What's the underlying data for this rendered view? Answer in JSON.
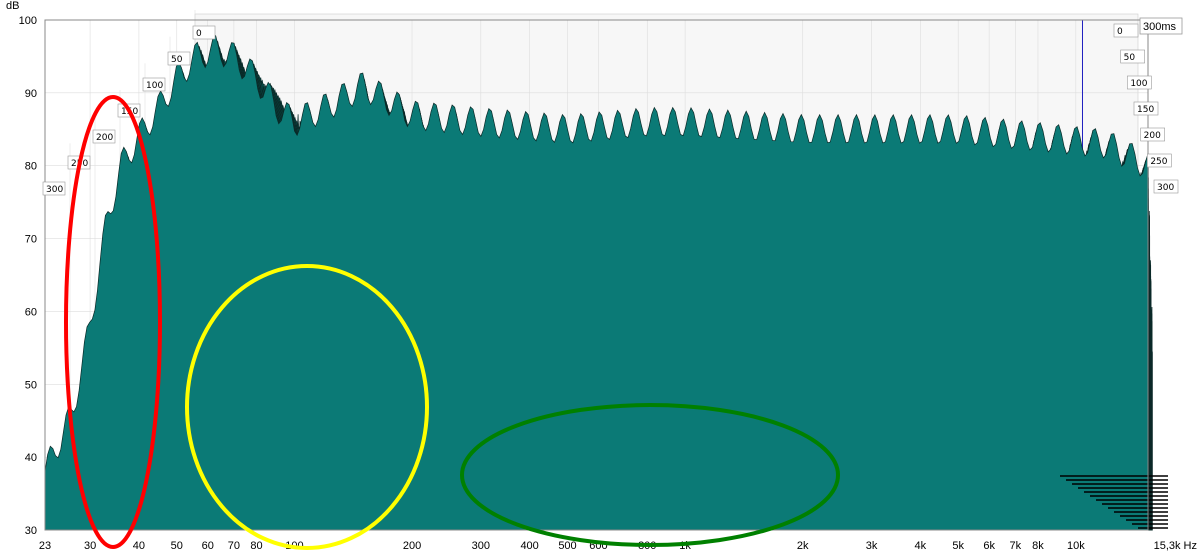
{
  "chart_data": {
    "type": "area",
    "subtype": "cumulative-spectral-decay-waterfall",
    "ylabel": "dB",
    "xunit": "Hz",
    "x_scale": "log",
    "xlim": [
      23,
      15300
    ],
    "ylim": [
      30,
      100
    ],
    "y_ticks": [
      30,
      40,
      50,
      60,
      70,
      80,
      90,
      100
    ],
    "x_ticks": [
      {
        "value": 23,
        "label": "23"
      },
      {
        "value": 30,
        "label": "30"
      },
      {
        "value": 40,
        "label": "40"
      },
      {
        "value": 50,
        "label": "50"
      },
      {
        "value": 60,
        "label": "60"
      },
      {
        "value": 70,
        "label": "70"
      },
      {
        "value": 80,
        "label": "80"
      },
      {
        "value": 100,
        "label": "100"
      },
      {
        "value": 200,
        "label": "200"
      },
      {
        "value": 300,
        "label": "300"
      },
      {
        "value": 400,
        "label": "400"
      },
      {
        "value": 500,
        "label": "500"
      },
      {
        "value": 600,
        "label": "600"
      },
      {
        "value": 800,
        "label": "800"
      },
      {
        "value": 1000,
        "label": "1k"
      },
      {
        "value": 2000,
        "label": "2k"
      },
      {
        "value": 3000,
        "label": "3k"
      },
      {
        "value": 4000,
        "label": "4k"
      },
      {
        "value": 5000,
        "label": "5k"
      },
      {
        "value": 6000,
        "label": "6k"
      },
      {
        "value": 7000,
        "label": "7k"
      },
      {
        "value": 8000,
        "label": "8k"
      },
      {
        "value": 10000,
        "label": "10k"
      },
      {
        "value": 15300,
        "label": "15,3k Hz"
      }
    ],
    "time_unit_label": "300ms",
    "time_ticks_ms": [
      0,
      50,
      100,
      150,
      200,
      250,
      300
    ],
    "slice_count": 60,
    "surface_color": "#0b7a76",
    "highlight_colors": [
      "#ff0000",
      "#ffff00",
      "#008000"
    ],
    "front_slice": [
      {
        "f": 23,
        "db": 38
      },
      {
        "f": 27,
        "db": 46
      },
      {
        "f": 30,
        "db": 58
      },
      {
        "f": 33,
        "db": 72
      },
      {
        "f": 36,
        "db": 80
      },
      {
        "f": 40,
        "db": 84
      },
      {
        "f": 45,
        "db": 88
      },
      {
        "f": 50,
        "db": 92
      },
      {
        "f": 56,
        "db": 95
      },
      {
        "f": 63,
        "db": 96
      },
      {
        "f": 70,
        "db": 95
      },
      {
        "f": 80,
        "db": 92
      },
      {
        "f": 90,
        "db": 88
      },
      {
        "f": 100,
        "db": 86
      },
      {
        "f": 120,
        "db": 88
      },
      {
        "f": 150,
        "db": 91
      },
      {
        "f": 200,
        "db": 87
      },
      {
        "f": 300,
        "db": 86
      },
      {
        "f": 500,
        "db": 85
      },
      {
        "f": 800,
        "db": 86
      },
      {
        "f": 1000,
        "db": 86
      },
      {
        "f": 2000,
        "db": 85
      },
      {
        "f": 3000,
        "db": 85
      },
      {
        "f": 5000,
        "db": 85
      },
      {
        "f": 8000,
        "db": 84
      },
      {
        "f": 12000,
        "db": 83
      },
      {
        "f": 15300,
        "db": 80
      }
    ]
  }
}
